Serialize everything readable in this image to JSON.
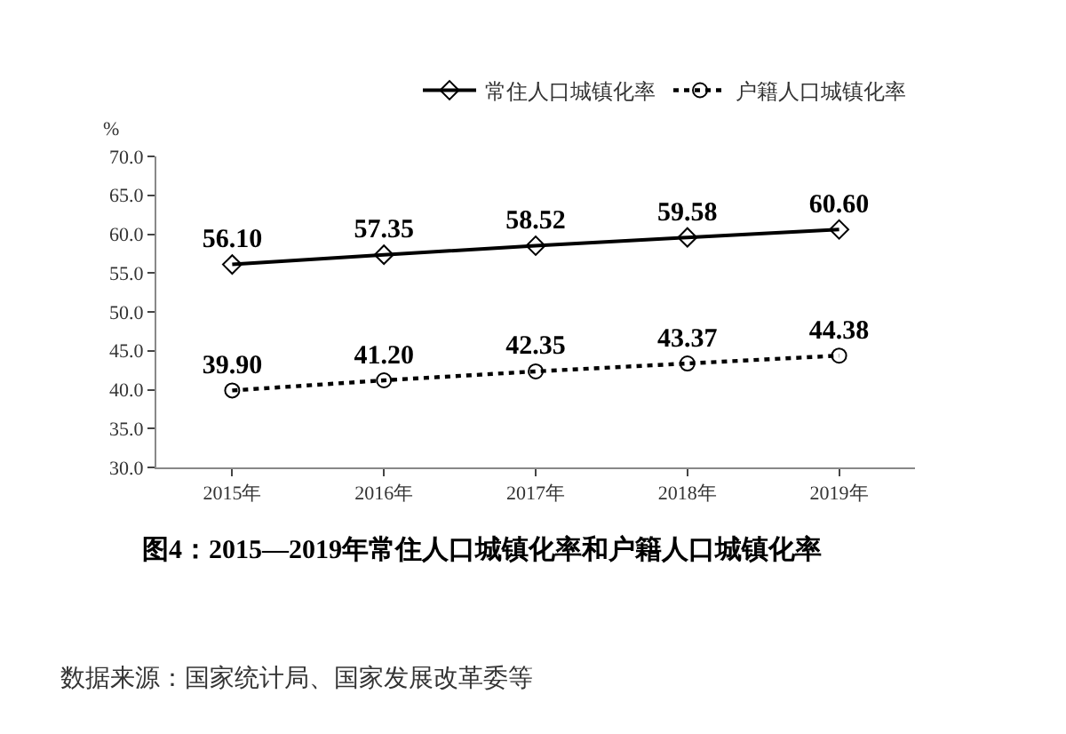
{
  "chart_data": {
    "type": "line",
    "title": "图4：2015—2019年常住人口城镇化率和户籍人口城镇化率",
    "ylabel": "%",
    "annotations": [
      "数据来源：国家统计局、国家发展改革委等"
    ],
    "categories": [
      "2015年",
      "2016年",
      "2017年",
      "2018年",
      "2019年"
    ],
    "series": [
      {
        "name": "常住人口城镇化率",
        "color": "#000000",
        "values": [
          56.1,
          57.35,
          58.52,
          59.58,
          60.6
        ],
        "value_labels": [
          "56.10",
          "57.35",
          "58.52",
          "59.58",
          "60.60"
        ],
        "marker": "diamond",
        "line_style": "solid"
      },
      {
        "name": "户籍人口城镇化率",
        "color": "#000000",
        "values": [
          39.9,
          41.2,
          42.35,
          43.37,
          44.38
        ],
        "value_labels": [
          "39.90",
          "41.20",
          "42.35",
          "43.37",
          "44.38"
        ],
        "marker": "circle",
        "line_style": "dotted"
      }
    ],
    "ylim": [
      30,
      70
    ],
    "yticks": [
      {
        "value": 30,
        "label": "30.0"
      },
      {
        "value": 35,
        "label": "35.0"
      },
      {
        "value": 40,
        "label": "40.0"
      },
      {
        "value": 45,
        "label": "45.0"
      },
      {
        "value": 50,
        "label": "50.0"
      },
      {
        "value": 55,
        "label": "55.0"
      },
      {
        "value": 60,
        "label": "60.0"
      },
      {
        "value": 65,
        "label": "65.0"
      },
      {
        "value": 70,
        "label": "70.0"
      }
    ],
    "legend": "top right"
  }
}
